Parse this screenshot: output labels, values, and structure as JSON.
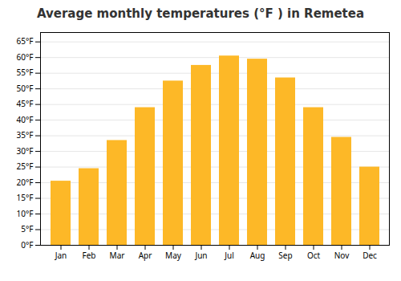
{
  "chart_data": {
    "type": "bar",
    "title": "Average monthly temperatures (°F ) in Remetea",
    "categories": [
      "Jan",
      "Feb",
      "Mar",
      "Apr",
      "May",
      "Jun",
      "Jul",
      "Aug",
      "Sep",
      "Oct",
      "Nov",
      "Dec"
    ],
    "values": [
      20.5,
      24.5,
      33.5,
      44.0,
      52.5,
      57.5,
      60.5,
      59.5,
      53.5,
      44.0,
      34.5,
      25.0
    ],
    "color": "#FDB827",
    "ylim": [
      0,
      68
    ],
    "yticks": [
      {
        "value": 0,
        "label": "0°F"
      },
      {
        "value": 5,
        "label": "5°F"
      },
      {
        "value": 10,
        "label": "10°F"
      },
      {
        "value": 15,
        "label": "15°F"
      },
      {
        "value": 20,
        "label": "20°F"
      },
      {
        "value": 25,
        "label": "25°F"
      },
      {
        "value": 30,
        "label": "30°F"
      },
      {
        "value": 35,
        "label": "35°F"
      },
      {
        "value": 40,
        "label": "40°F"
      },
      {
        "value": 45,
        "label": "45°F"
      },
      {
        "value": 50,
        "label": "50°F"
      },
      {
        "value": 55,
        "label": "55°F"
      },
      {
        "value": 60,
        "label": "60°F"
      },
      {
        "value": 65,
        "label": "65°F"
      }
    ],
    "grid": true
  }
}
